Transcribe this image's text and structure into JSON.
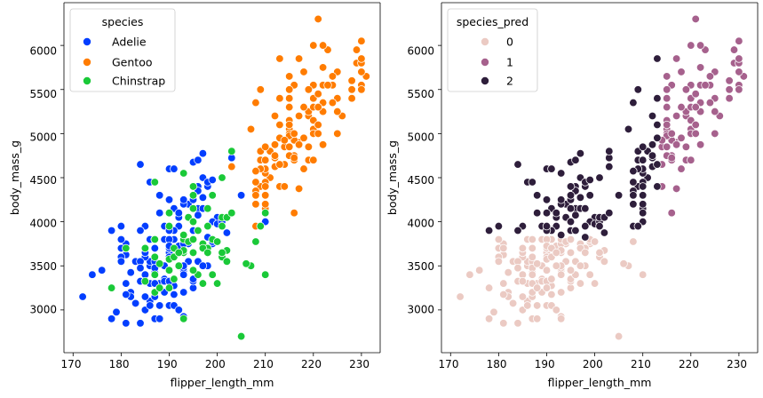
{
  "chart_data": [
    {
      "type": "scatter",
      "title": "",
      "xlabel": "flipper_length_mm",
      "ylabel": "body_mass_g",
      "xlim": [
        168.1,
        233.9
      ],
      "ylim": [
        2515,
        6485
      ],
      "xticks": [
        170,
        180,
        190,
        200,
        210,
        220,
        230
      ],
      "yticks": [
        3000,
        3500,
        4000,
        4500,
        5000,
        5500,
        6000
      ],
      "grid": false,
      "legend": {
        "title": "species",
        "location": "top-left"
      },
      "series": [
        {
          "name": "Adelie",
          "color": "#023eff",
          "x": [
            181,
            186,
            195,
            193,
            190,
            181,
            195,
            193,
            190,
            186,
            180,
            182,
            191,
            198,
            185,
            195,
            197,
            184,
            194,
            174,
            180,
            189,
            185,
            180,
            187,
            183,
            187,
            172,
            180,
            178,
            178,
            188,
            184,
            195,
            196,
            190,
            180,
            181,
            184,
            182,
            195,
            186,
            196,
            185,
            190,
            182,
            179,
            190,
            191,
            186,
            188,
            190,
            200,
            187,
            191,
            186,
            193,
            181,
            194,
            185,
            195,
            185,
            192,
            184,
            192,
            195,
            188,
            190,
            198,
            190,
            190,
            196,
            197,
            190,
            195,
            191,
            184,
            187,
            195,
            189,
            196,
            187,
            193,
            191,
            194,
            190,
            189,
            189,
            190,
            202,
            205,
            185,
            186,
            187,
            208,
            190,
            196,
            178,
            192,
            192,
            203,
            183,
            190,
            193,
            184,
            199,
            190,
            181,
            197,
            198,
            191,
            193,
            197,
            191,
            196,
            188,
            199,
            189,
            189,
            187,
            198,
            176,
            202,
            186,
            199,
            191,
            195,
            191,
            210,
            190,
            197,
            193,
            199,
            187,
            190,
            191,
            200,
            185,
            193,
            193,
            187,
            188,
            190,
            192,
            185,
            190,
            184,
            195,
            193,
            187,
            201
          ],
          "y": [
            3750,
            3800,
            3250,
            3450,
            3650,
            3625,
            4675,
            3475,
            4250,
            3300,
            3700,
            3200,
            3800,
            4400,
            3700,
            3450,
            4500,
            3325,
            4200,
            3400,
            3600,
            3800,
            3950,
            3800,
            3800,
            3550,
            3200,
            3150,
            3950,
            3250,
            3900,
            3300,
            3900,
            3325,
            4150,
            3950,
            3550,
            3300,
            4650,
            3150,
            3900,
            3100,
            4400,
            3000,
            4600,
            3425,
            2975,
            3450,
            4150,
            3500,
            4300,
            3450,
            4050,
            2900,
            3700,
            3550,
            3800,
            2850,
            3750,
            3150,
            4400,
            3600,
            4050,
            2850,
            3950,
            3350,
            4100,
            3050,
            4450,
            3600,
            3900,
            3550,
            4150,
            3700,
            4250,
            3700,
            3900,
            3550,
            4000,
            3200,
            4700,
            3800,
            4200,
            3350,
            3550,
            3800,
            3500,
            3950,
            3600,
            3550,
            4300,
            3400,
            4450,
            3300,
            4300,
            3700,
            4350,
            2900,
            4100,
            3725,
            4725,
            3075,
            4250,
            2925,
            3550,
            3750,
            3900,
            3175,
            4775,
            3825,
            4600,
            3200,
            4275,
            3900,
            4075,
            2900,
            3775,
            3350,
            3325,
            3150,
            3500,
            3450,
            3875,
            3050,
            4000,
            3275,
            4300,
            3050,
            4000,
            3325,
            3500,
            3500,
            4475,
            3425,
            3900,
            3175,
            3975,
            3400,
            4250,
            3400,
            3475,
            3050,
            3725,
            3000,
            3650,
            4250,
            3475,
            3450,
            3750,
            3700,
            4000
          ],
          "points": []
        },
        {
          "name": "Gentoo",
          "color": "#ff7c00",
          "x": [
            211,
            230,
            210,
            218,
            215,
            210,
            211,
            219,
            209,
            215,
            214,
            216,
            214,
            213,
            210,
            217,
            210,
            221,
            209,
            222,
            218,
            215,
            213,
            215,
            215,
            215,
            216,
            215,
            210,
            220,
            222,
            209,
            207,
            230,
            220,
            220,
            213,
            219,
            208,
            208,
            208,
            225,
            210,
            216,
            222,
            217,
            210,
            225,
            213,
            215,
            210,
            220,
            210,
            225,
            217,
            220,
            208,
            220,
            208,
            224,
            208,
            221,
            214,
            231,
            219,
            230,
            214,
            229,
            220,
            223,
            216,
            221,
            221,
            217,
            216,
            230,
            209,
            220,
            215,
            223,
            212,
            221,
            212,
            224,
            212,
            228,
            218,
            218,
            212,
            230,
            218,
            228,
            212,
            224,
            214,
            226,
            216,
            222,
            203,
            225,
            219,
            228,
            215,
            228,
            216,
            215,
            210,
            219,
            208,
            209,
            216,
            229,
            213,
            230,
            217,
            230,
            217,
            222,
            214,
            215,
            222,
            212,
            213
          ],
          "y": [
            4500,
            5700,
            4450,
            5700,
            5400,
            4550,
            4800,
            5200,
            4400,
            5150,
            4650,
            5550,
            4650,
            5850,
            4200,
            5850,
            4150,
            6300,
            4800,
            5350,
            5700,
            5000,
            4400,
            5050,
            5000,
            5100,
            4100,
            5650,
            4600,
            5550,
            5250,
            4700,
            5050,
            6050,
            5150,
            5400,
            4950,
            5250,
            4350,
            5350,
            3950,
            5700,
            4300,
            4750,
            5550,
            4900,
            4200,
            5400,
            5100,
            5300,
            4850,
            5300,
            4400,
            5000,
            4900,
            5050,
            4300,
            5000,
            4450,
            5550,
            4200,
            5300,
            4400,
            5650,
            4700,
            5700,
            4650,
            5800,
            4700,
            5550,
            4750,
            5000,
            5100,
            5200,
            4700,
            5800,
            4600,
            6000,
            4750,
            5950,
            4625,
            5450,
            4725,
            5350,
            4750,
            5600,
            4600,
            5300,
            4875,
            5550,
            4950,
            5400,
            4750,
            5650,
            4850,
            5200,
            4925,
            4875,
            4625,
            5250,
            4850,
            5600,
            4975,
            5500,
            4725,
            5500,
            4700,
            5500,
            4575,
            5500,
            5000,
            5950,
            4650,
            5500,
            4375,
            5850,
            4875,
            6000,
            4925,
            4850,
            5750,
            5200,
            5400
          ],
          "points": []
        },
        {
          "name": "Chinstrap",
          "color": "#1ac938",
          "x": [
            192,
            196,
            193,
            188,
            197,
            198,
            178,
            197,
            195,
            198,
            193,
            194,
            185,
            201,
            190,
            201,
            197,
            181,
            190,
            195,
            191,
            187,
            193,
            195,
            200,
            198,
            196,
            187,
            191,
            193,
            187,
            195,
            191,
            190,
            201,
            196,
            193,
            203,
            205,
            201,
            190,
            195,
            202,
            207,
            193,
            187,
            210,
            199,
            190,
            202,
            185,
            201,
            187,
            202,
            191,
            190,
            188,
            194,
            199,
            206,
            209,
            201,
            192,
            195,
            199,
            200,
            203,
            208,
            210,
            197,
            195,
            198
          ],
          "y": [
            3500,
            3900,
            3650,
            3525,
            3725,
            3950,
            3250,
            3750,
            4150,
            3700,
            3800,
            3775,
            3700,
            4050,
            3575,
            4050,
            3300,
            3700,
            3450,
            4400,
            3600,
            3400,
            2900,
            3800,
            3300,
            4150,
            3400,
            3800,
            3700,
            4550,
            3200,
            4300,
            3350,
            4100,
            3600,
            3900,
            3850,
            4800,
            2700,
            4500,
            3950,
            3650,
            3550,
            3500,
            3675,
            4450,
            3400,
            4300,
            3250,
            3675,
            3325,
            3950,
            3600,
            4050,
            3350,
            3450,
            3250,
            4050,
            3800,
            3525,
            3950,
            3650,
            3650,
            4000,
            3400,
            3775,
            4100,
            3775,
            4100,
            3700,
            3450,
            3650
          ],
          "points": []
        }
      ]
    },
    {
      "type": "scatter",
      "title": "",
      "xlabel": "flipper_length_mm",
      "ylabel": "body_mass_g",
      "xlim": [
        168.1,
        233.9
      ],
      "ylim": [
        2515,
        6485
      ],
      "xticks": [
        170,
        180,
        190,
        200,
        210,
        220,
        230
      ],
      "yticks": [
        3000,
        3500,
        4000,
        4500,
        5000,
        5500,
        6000
      ],
      "grid": false,
      "legend": {
        "title": "species_pred",
        "location": "top-left"
      },
      "series": [
        {
          "name": "0",
          "color": "#ebcac3",
          "filter": "y<=3800",
          "points": []
        },
        {
          "name": "1",
          "color": "#a6618d",
          "filter": "y>3800 && x>=214",
          "points": []
        },
        {
          "name": "2",
          "color": "#2e1e3b",
          "filter": "y>3800 && x<214",
          "points": []
        }
      ]
    }
  ],
  "tick_labels": {
    "x": [
      "170",
      "180",
      "190",
      "200",
      "210",
      "220",
      "230"
    ],
    "y": [
      "3000",
      "3500",
      "4000",
      "4500",
      "5000",
      "5500",
      "6000"
    ]
  },
  "left_panel": {
    "xlabel": "flipper_length_mm",
    "ylabel": "body_mass_g",
    "legend_title": "species",
    "legend_labels": [
      "Adelie",
      "Gentoo",
      "Chinstrap"
    ]
  },
  "right_panel": {
    "xlabel": "flipper_length_mm",
    "ylabel": "body_mass_g",
    "legend_title": "species_pred",
    "legend_labels": [
      "0",
      "1",
      "2"
    ]
  }
}
